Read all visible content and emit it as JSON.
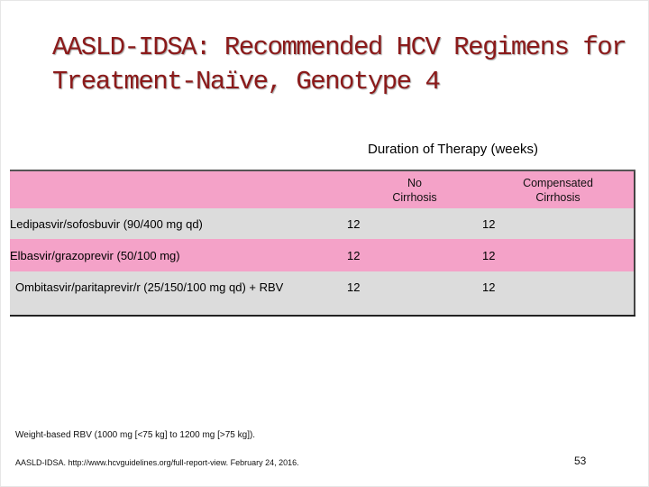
{
  "slide": {
    "title_line1": "AASLD-IDSA: Recommended HCV Regimens for",
    "title_line2": "Treatment-Naïve, Genotype 4",
    "duration_header": "Duration of Therapy (weeks)",
    "columns": [
      {
        "line1": "No",
        "line2": "Cirrhosis"
      },
      {
        "line1": "Compensated",
        "line2": "Cirrhosis"
      }
    ],
    "rows": [
      {
        "regimen": "Ledipasvir/sofosbuvir (90/400 mg qd)",
        "no_cirrhosis": "12",
        "compensated": "12"
      },
      {
        "regimen": "Elbasvir/grazoprevir (50/100 mg)",
        "no_cirrhosis": "12",
        "compensated": "12"
      },
      {
        "regimen": "Ombitasvir/paritaprevir/r (25/150/100 mg qd) + RBV",
        "no_cirrhosis": "12",
        "compensated": "12"
      }
    ],
    "footnote": "Weight-based RBV (1000 mg [<75 kg] to 1200 mg [>75 kg]).",
    "source": "AASLD-IDSA. http://www.hcvguidelines.org/full-report-view. February 24, 2016.",
    "page_number": "53"
  },
  "colors": {
    "title": "#8b1a1a",
    "pink_row": "#f4a2c8",
    "gray_row": "#dcdcdc"
  }
}
